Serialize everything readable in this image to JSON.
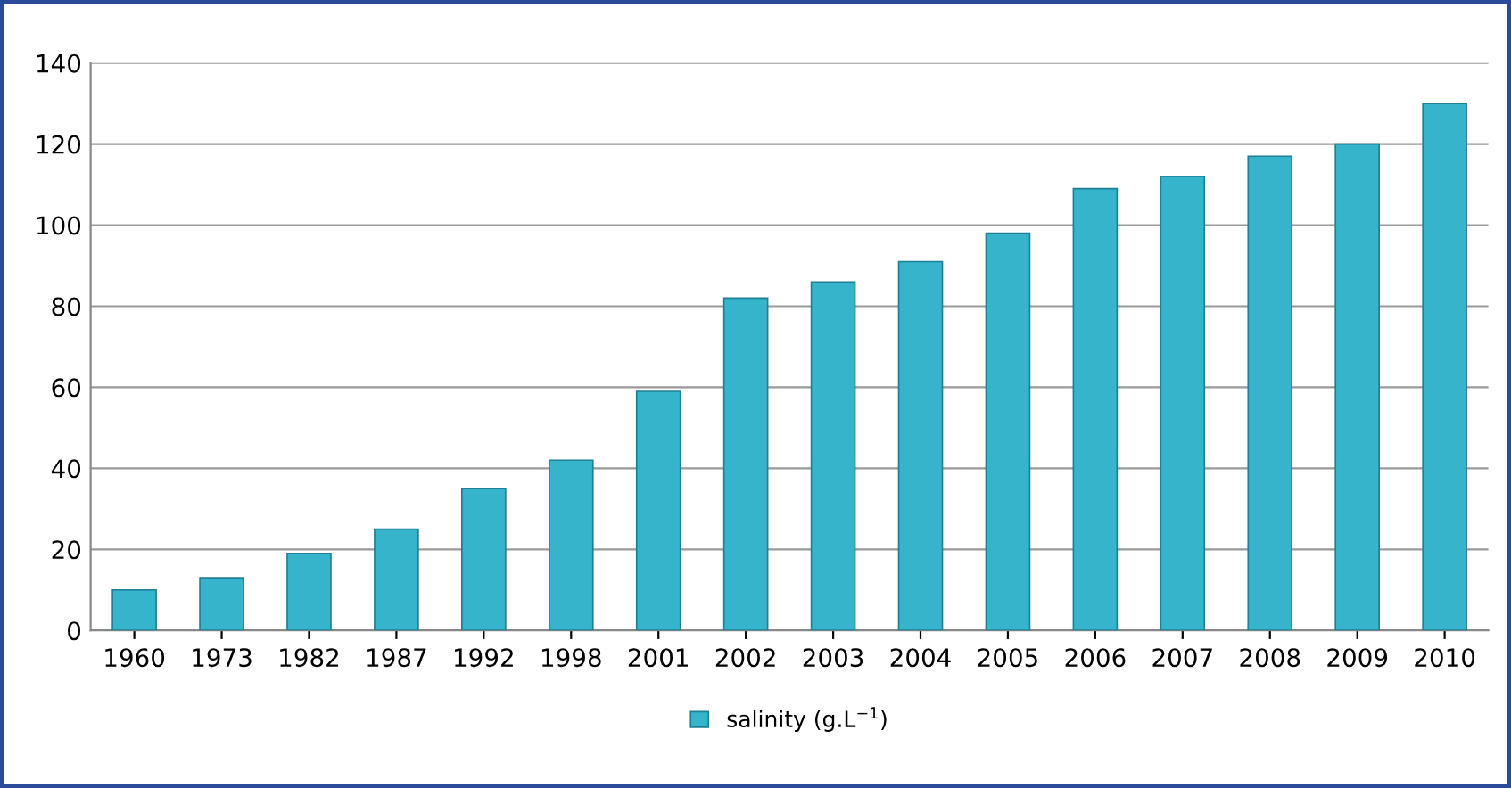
{
  "chart_data": {
    "type": "bar",
    "categories": [
      "1960",
      "1973",
      "1982",
      "1987",
      "1992",
      "1998",
      "2001",
      "2002",
      "2003",
      "2004",
      "2005",
      "2006",
      "2007",
      "2008",
      "2009",
      "2010"
    ],
    "series": [
      {
        "name": "salinity (g.L$^{−1}$)",
        "color": "#35b4cc",
        "values": [
          10,
          13,
          19,
          25,
          35,
          42,
          59,
          82,
          86,
          91,
          98,
          109,
          112,
          117,
          120,
          130
        ]
      }
    ],
    "ylim": [
      0,
      140
    ],
    "yticks": [
      0,
      20,
      40,
      60,
      80,
      100,
      120,
      140
    ],
    "grid": "y",
    "legend": "bottom"
  }
}
